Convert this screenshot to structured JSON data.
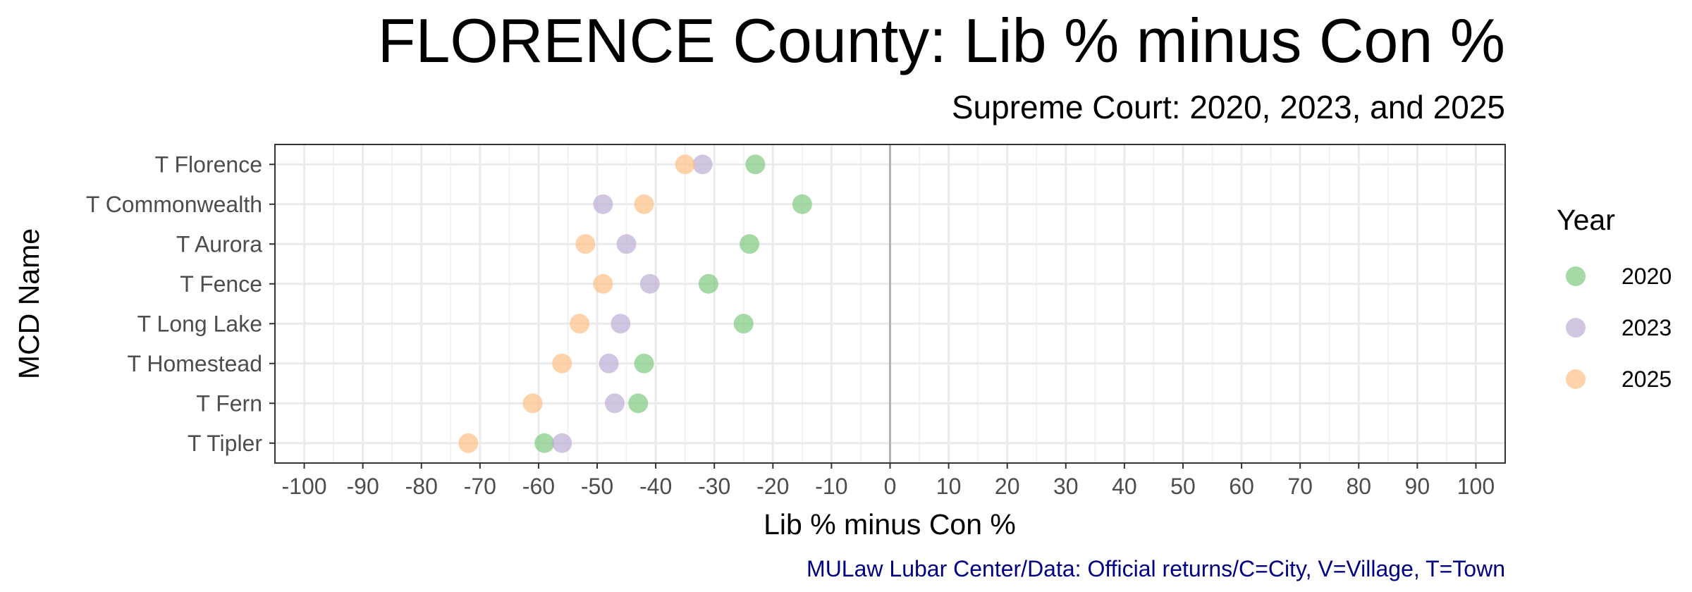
{
  "chart_data": {
    "type": "scatter",
    "title": "FLORENCE County: Lib % minus Con %",
    "subtitle": "Supreme Court: 2020, 2023, and 2025",
    "xlabel": "Lib % minus Con %",
    "ylabel": "MCD Name",
    "xlim": [
      -105,
      105
    ],
    "xticks": [
      -100,
      -90,
      -80,
      -70,
      -60,
      -50,
      -40,
      -30,
      -20,
      -10,
      0,
      10,
      20,
      30,
      40,
      50,
      60,
      70,
      80,
      90,
      100
    ],
    "grid": true,
    "reference_line_x": 0,
    "legend": {
      "title": "Year",
      "position": "right",
      "entries": [
        "2020",
        "2023",
        "2025"
      ]
    },
    "caption": "MULaw Lubar Center/Data: Official returns/C=City, V=Village, T=Town",
    "categories": [
      "T Florence",
      "T Commonwealth",
      "T Aurora",
      "T Fence",
      "T Long Lake",
      "T Homestead",
      "T Fern",
      "T Tipler"
    ],
    "series": [
      {
        "name": "2020",
        "color": "#7fc97f",
        "values": [
          -23,
          -15,
          -24,
          -31,
          -25,
          -42,
          -43,
          -59
        ]
      },
      {
        "name": "2023",
        "color": "#beaed4",
        "values": [
          -32,
          -49,
          -45,
          -41,
          -46,
          -48,
          -47,
          -56
        ]
      },
      {
        "name": "2025",
        "color": "#fdc086",
        "values": [
          -35,
          -42,
          -52,
          -49,
          -53,
          -56,
          -61,
          -72
        ]
      }
    ]
  }
}
